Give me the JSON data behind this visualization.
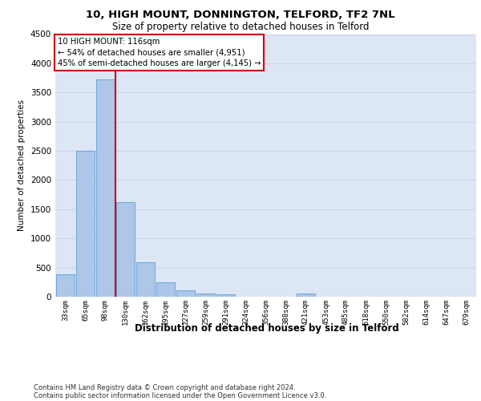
{
  "title1": "10, HIGH MOUNT, DONNINGTON, TELFORD, TF2 7NL",
  "title2": "Size of property relative to detached houses in Telford",
  "xlabel": "Distribution of detached houses by size in Telford",
  "ylabel": "Number of detached properties",
  "categories": [
    "33sqm",
    "65sqm",
    "98sqm",
    "130sqm",
    "162sqm",
    "195sqm",
    "227sqm",
    "259sqm",
    "291sqm",
    "324sqm",
    "356sqm",
    "388sqm",
    "421sqm",
    "453sqm",
    "485sqm",
    "518sqm",
    "550sqm",
    "582sqm",
    "614sqm",
    "647sqm",
    "679sqm"
  ],
  "values": [
    390,
    2500,
    3730,
    1620,
    590,
    250,
    110,
    55,
    40,
    0,
    0,
    0,
    50,
    0,
    0,
    0,
    0,
    0,
    0,
    0,
    0
  ],
  "bar_color": "#aec6e8",
  "bar_edge_color": "#5a9fd4",
  "grid_color": "#ccd6e8",
  "background_color": "#dce6f5",
  "annotation_box_text": "10 HIGH MOUNT: 116sqm\n← 54% of detached houses are smaller (4,951)\n45% of semi-detached houses are larger (4,145) →",
  "annotation_box_color": "#ffffff",
  "annotation_box_edge_color": "#cc0000",
  "vline_color": "#cc0000",
  "ylim": [
    0,
    4500
  ],
  "yticks": [
    0,
    500,
    1000,
    1500,
    2000,
    2500,
    3000,
    3500,
    4000,
    4500
  ],
  "footer1": "Contains HM Land Registry data © Crown copyright and database right 2024.",
  "footer2": "Contains public sector information licensed under the Open Government Licence v3.0."
}
